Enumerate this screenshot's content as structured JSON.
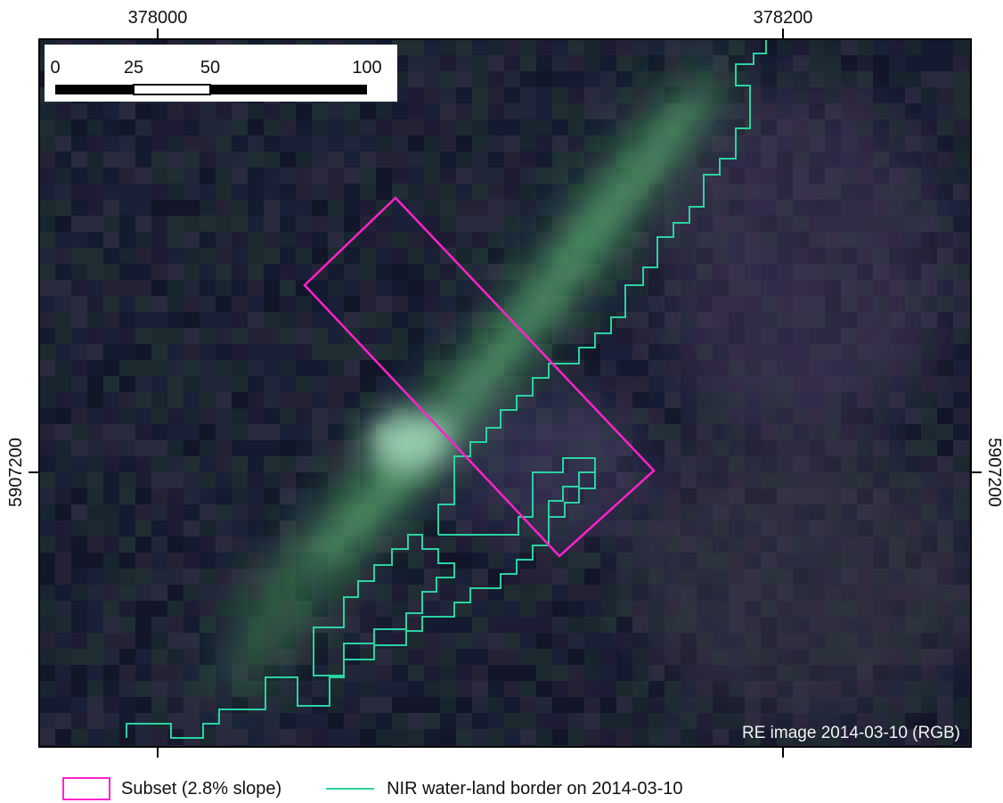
{
  "map": {
    "x_ticks": [
      "378000",
      "378200"
    ],
    "y_ticks": [
      "5907200"
    ],
    "scale_bar": {
      "labels": [
        "0",
        "25",
        "50",
        "100"
      ]
    },
    "caption": "RE image 2014-03-10 (RGB)",
    "colors": {
      "subset_outline": "#ff22cc",
      "border_line": "#2bd3a0",
      "frame": "#000000"
    }
  },
  "legend": {
    "subset_label": "Subset (2.8% slope)",
    "border_label": "NIR water-land border on 2014-03-10"
  }
}
